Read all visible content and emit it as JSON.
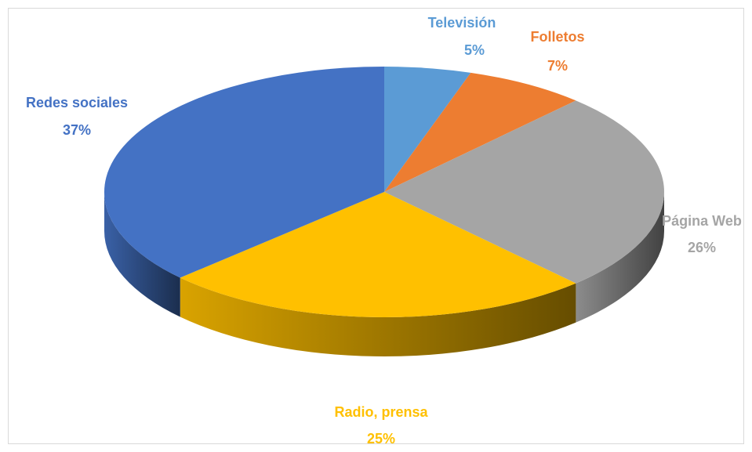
{
  "chart_data": {
    "type": "pie3d",
    "categories": [
      "Televisión",
      "Folletos",
      "Página Web",
      "Radio, prensa",
      "Redes sociales"
    ],
    "values": [
      5,
      7,
      26,
      25,
      37
    ],
    "value_labels": [
      "5%",
      "7%",
      "26%",
      "25%",
      "37%"
    ],
    "colors": [
      "#5b9bd5",
      "#ed7d31",
      "#a5a5a5",
      "#ffc000",
      "#4472c4"
    ]
  }
}
